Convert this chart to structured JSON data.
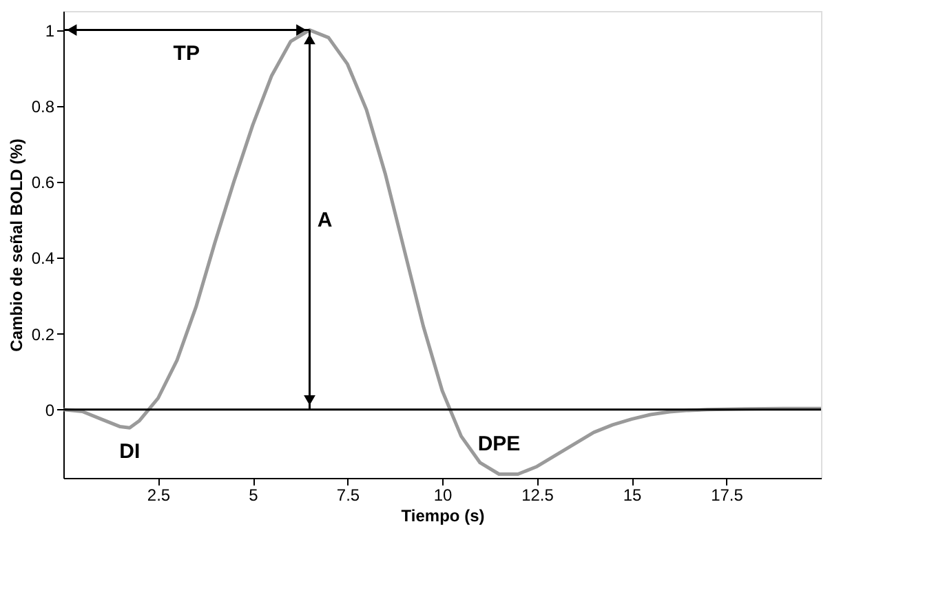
{
  "chart_data": {
    "type": "line",
    "xlabel": "Tiempo (s)",
    "ylabel": "Cambio de señal BOLD (%)",
    "x": [
      0,
      0.5,
      1,
      1.5,
      1.75,
      2,
      2.5,
      3,
      3.5,
      4,
      4.5,
      5,
      5.5,
      6,
      6.5,
      7,
      7.5,
      8,
      8.5,
      9,
      9.5,
      10,
      10.5,
      11,
      11.5,
      12,
      12.5,
      13,
      13.5,
      14,
      14.5,
      15,
      15.5,
      16,
      16.5,
      17,
      18,
      19,
      20
    ],
    "series": [
      {
        "color": "#9a9a9a",
        "values": [
          0,
          -0.005,
          -0.025,
          -0.045,
          -0.048,
          -0.03,
          0.03,
          0.13,
          0.27,
          0.44,
          0.6,
          0.75,
          0.88,
          0.97,
          1.0,
          0.98,
          0.91,
          0.79,
          0.62,
          0.42,
          0.22,
          0.05,
          -0.07,
          -0.14,
          -0.17,
          -0.17,
          -0.15,
          -0.12,
          -0.09,
          -0.06,
          -0.04,
          -0.025,
          -0.013,
          -0.006,
          -0.002,
          0,
          0.002,
          0.003,
          0.003
        ]
      }
    ],
    "xlim": [
      0,
      20
    ],
    "ylim": [
      -0.18,
      1.05
    ],
    "xticks": [
      {
        "value": 2.5,
        "label": "2.5"
      },
      5,
      {
        "value": 7.5,
        "label": "7.5"
      },
      10,
      {
        "value": 12.5,
        "label": "12.5"
      },
      15,
      {
        "value": 17.5,
        "label": "17.5"
      }
    ],
    "yticks": [
      {
        "value": 0,
        "label": "0"
      },
      0.2,
      0.4,
      0.6,
      0.8,
      {
        "value": 1,
        "label": "1"
      }
    ],
    "ref_lines": [
      {
        "axis": "y",
        "value": 0,
        "color": "#000000"
      }
    ],
    "annotations": [
      "TP",
      "A",
      "DI",
      "DPE"
    ],
    "grid": false,
    "marker": "none",
    "line_style": "solid"
  }
}
